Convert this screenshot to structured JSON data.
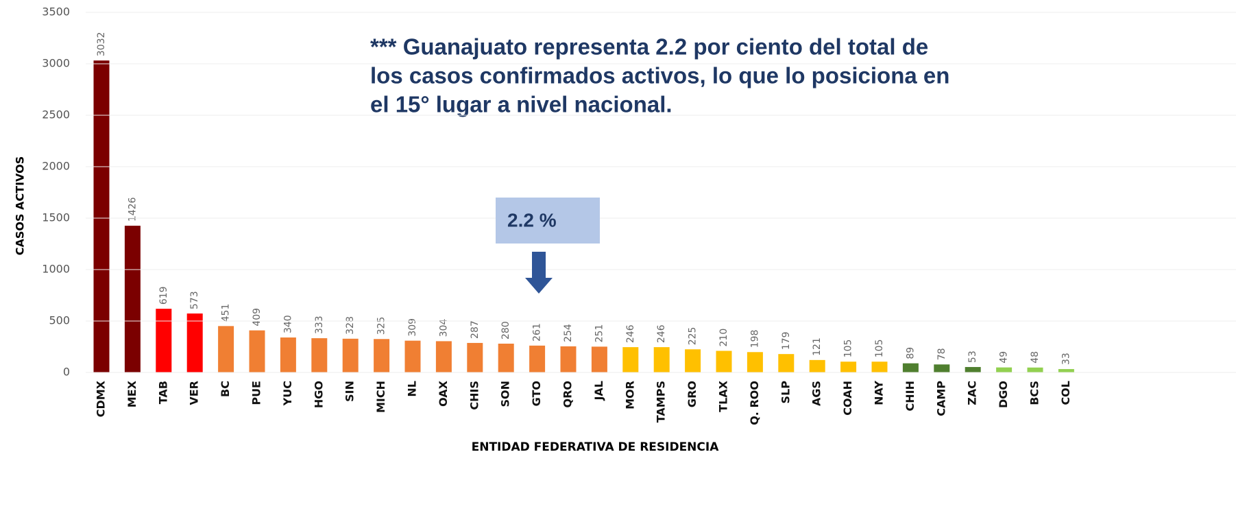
{
  "chart_data": {
    "type": "bar",
    "annotation": [
      "*** Guanajuato representa 2.2 por ciento del total de",
      "los casos confirmados activos, lo que lo posiciona en",
      "el 15° lugar a nivel nacional."
    ],
    "callout": "2.2 %",
    "y_label": "CASOS ACTIVOS",
    "x_label": "ENTIDAD FEDERATIVA DE  RESIDENCIA",
    "categories": [
      "CDMX",
      "MEX",
      "TAB",
      "VER",
      "BC",
      "PUE",
      "YUC",
      "HGO",
      "SIN",
      "MICH",
      "NL",
      "OAX",
      "CHIS",
      "SON",
      "GTO",
      "QRO",
      "JAL",
      "MOR",
      "TAMPS",
      "GRO",
      "TLAX",
      "Q. ROO",
      "SLP",
      "AGS",
      "COAH",
      "NAY",
      "CHIH",
      "CAMP",
      "ZAC",
      "DGO",
      "BCS",
      "COL"
    ],
    "values": [
      3032,
      1426,
      619,
      573,
      451,
      409,
      340,
      333,
      328,
      325,
      309,
      304,
      287,
      280,
      261,
      254,
      251,
      246,
      246,
      225,
      210,
      198,
      179,
      121,
      105,
      105,
      89,
      78,
      53,
      49,
      48,
      33
    ],
    "colors": [
      "#7b0000",
      "#7b0000",
      "#ff0000",
      "#ff0000",
      "#f07f33",
      "#f07f33",
      "#f07f33",
      "#f07f33",
      "#f07f33",
      "#f07f33",
      "#f07f33",
      "#f07f33",
      "#f07f33",
      "#f07f33",
      "#f07f33",
      "#f07f33",
      "#f07f33",
      "#ffc000",
      "#ffc000",
      "#ffc000",
      "#ffc000",
      "#ffc000",
      "#ffc000",
      "#ffc000",
      "#ffc000",
      "#ffc000",
      "#4f7f2f",
      "#4f7f2f",
      "#4f7f2f",
      "#92d050",
      "#92d050",
      "#92d050"
    ],
    "ylim": [
      0,
      3500
    ],
    "yticks": [
      0,
      500,
      1000,
      1500,
      2000,
      2500,
      3000,
      3500
    ],
    "grid": true
  }
}
